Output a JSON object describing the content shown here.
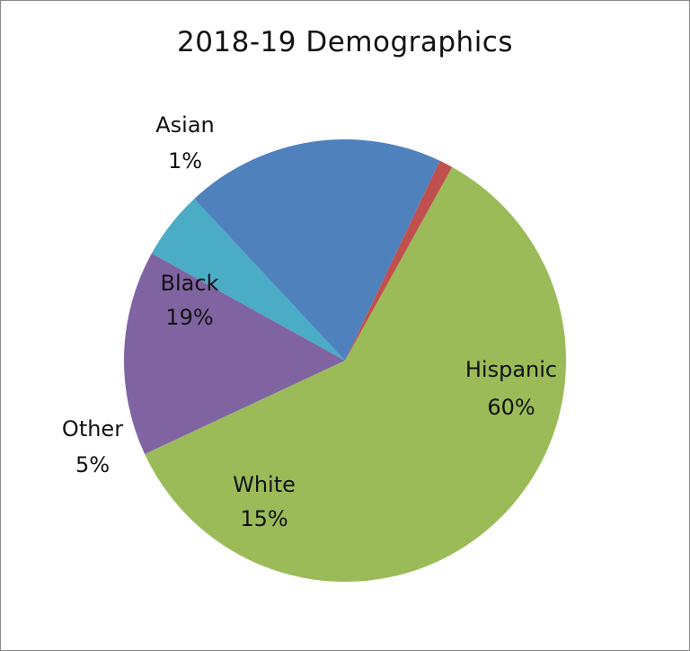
{
  "chart_data": {
    "type": "pie",
    "title": "2018-19 Demographics",
    "slices": [
      {
        "label": "Hispanic",
        "value": 60,
        "display": "60%",
        "color": "#9bbb59"
      },
      {
        "label": "White",
        "value": 15,
        "display": "15%",
        "color": "#8064a2"
      },
      {
        "label": "Other",
        "value": 5,
        "display": "5%",
        "color": "#4bacc6"
      },
      {
        "label": "Black",
        "value": 19,
        "display": "19%",
        "color": "#4f81bd"
      },
      {
        "label": "Asian",
        "value": 1,
        "display": "1%",
        "color": "#c0504d"
      }
    ],
    "legend": "none"
  }
}
